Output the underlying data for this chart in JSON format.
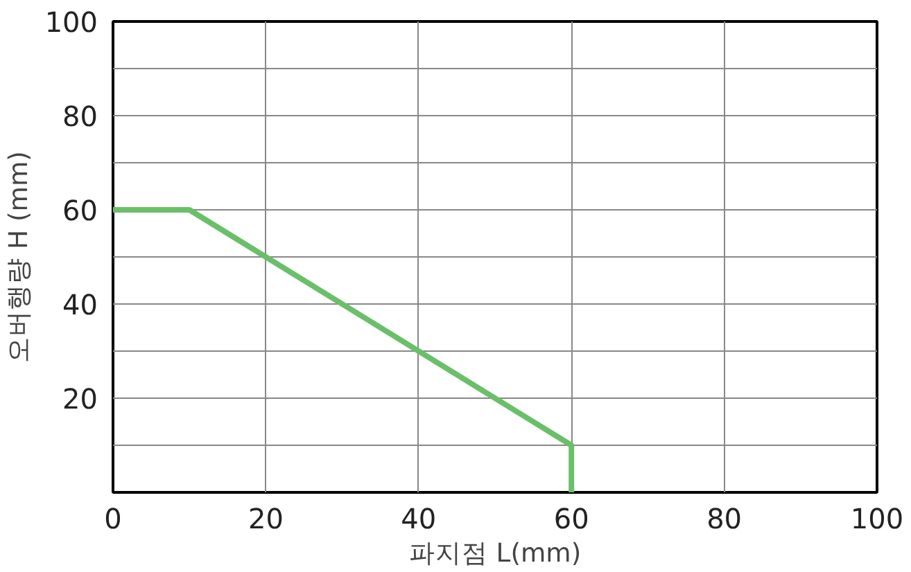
{
  "chart_data": {
    "type": "line",
    "xlabel": "파지점 L(mm)",
    "ylabel": "오버행량 H (mm)",
    "x": [
      0,
      10,
      60,
      60
    ],
    "series": [
      {
        "color": "#6abf69",
        "values": [
          60,
          60,
          10,
          0
        ]
      }
    ],
    "xlim": [
      0,
      100
    ],
    "ylim": [
      0,
      100
    ],
    "xticks": [
      0,
      20,
      40,
      60,
      80,
      100
    ],
    "yticks": [
      {
        "value": 10,
        "label": null
      },
      20,
      {
        "value": 30,
        "label": null
      },
      40,
      {
        "value": 50,
        "label": null
      },
      60,
      {
        "value": 70,
        "label": null
      },
      80,
      {
        "value": 90,
        "label": null
      },
      100
    ],
    "grid": true,
    "line_style": "solid",
    "marker": "none"
  }
}
